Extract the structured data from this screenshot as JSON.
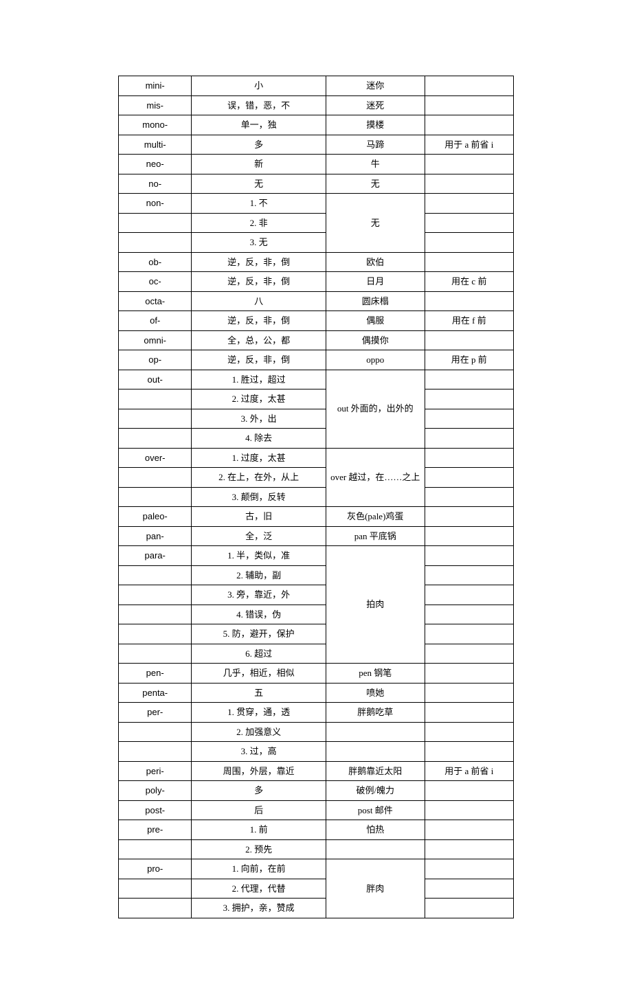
{
  "rows": [
    {
      "c1": "mini-",
      "c2": "小",
      "c3": "迷你",
      "c4": ""
    },
    {
      "c1": "mis-",
      "c2": "误，错，恶，不",
      "c3": "迷死",
      "c4": ""
    },
    {
      "c1": "mono-",
      "c2": "单一，独",
      "c3": "摸楼",
      "c4": ""
    },
    {
      "c1": "multi-",
      "c2": "多",
      "c3": "马蹄",
      "c4": "用于 a 前省 i"
    },
    {
      "c1": "neo-",
      "c2": "新",
      "c3": "牛",
      "c4": ""
    },
    {
      "c1": "no-",
      "c2": "无",
      "c3": "无",
      "c4": ""
    },
    {
      "c1": "non-",
      "c2": "1. 不",
      "c3_span": 3,
      "c3": "无",
      "c4": ""
    },
    {
      "c1": "",
      "c2": "2. 非",
      "c4": ""
    },
    {
      "c1": "",
      "c2": "3. 无",
      "c4": ""
    },
    {
      "c1": "ob-",
      "c2": "逆，反，非，倒",
      "c3": "欧伯",
      "c4": ""
    },
    {
      "c1": "oc-",
      "c2": "逆，反，非，倒",
      "c3": "日月",
      "c4": "用在 c 前"
    },
    {
      "c1": "octa-",
      "c2": "八",
      "c3": "圆床榻",
      "c4": ""
    },
    {
      "c1": "of-",
      "c2": "逆，反，非，倒",
      "c3": "偶服",
      "c4": "用在 f 前"
    },
    {
      "c1": "omni-",
      "c2": "全，总，公，都",
      "c3": "偶摸你",
      "c4": ""
    },
    {
      "c1": "op-",
      "c2": "逆，反，非，倒",
      "c3": "oppo",
      "c4": "用在 p 前"
    },
    {
      "c1": "out-",
      "c2": "1. 胜过，超过",
      "c3_span": 4,
      "c3": "out 外面的，出外的",
      "c4": ""
    },
    {
      "c1": "",
      "c2": "2. 过度，太甚",
      "c4": ""
    },
    {
      "c1": "",
      "c2": "3. 外，出",
      "c4": ""
    },
    {
      "c1": "",
      "c2": "4. 除去",
      "c4": ""
    },
    {
      "c1": "over-",
      "c2": "1. 过度，太甚",
      "c3_span": 3,
      "c3": "over 越过，在……之上",
      "c4": ""
    },
    {
      "c1": "",
      "c2": "2. 在上，在外，从上",
      "c4": ""
    },
    {
      "c1": "",
      "c2": "3. 颠倒，反转",
      "c4": ""
    },
    {
      "c1": "paleo-",
      "c2": "古，旧",
      "c3": "灰色(pale)鸡蛋",
      "c4": ""
    },
    {
      "c1": "pan-",
      "c2": "全，泛",
      "c3": "pan 平底锅",
      "c4": ""
    },
    {
      "c1": "para-",
      "c2": "1. 半，类似，准",
      "c3_span": 6,
      "c3": "拍肉",
      "c4": ""
    },
    {
      "c1": "",
      "c2": "2. 辅助，副",
      "c4": ""
    },
    {
      "c1": "",
      "c2": "3. 旁，靠近，外",
      "c4": ""
    },
    {
      "c1": "",
      "c2": "4. 错误，伪",
      "c4": ""
    },
    {
      "c1": "",
      "c2": "5. 防，避开，保护",
      "c4": ""
    },
    {
      "c1": "",
      "c2": "6. 超过",
      "c4": ""
    },
    {
      "c1": "pen-",
      "c2": "几乎，相近，相似",
      "c3": "pen 钢笔",
      "c4": ""
    },
    {
      "c1": "penta-",
      "c2": "五",
      "c3": "喷她",
      "c4": ""
    },
    {
      "c1": "per-",
      "c2": "1. 贯穿，通，透",
      "c3": "胖鹅吃草",
      "c4": ""
    },
    {
      "c1": "",
      "c2": "2. 加强意义",
      "c3": "",
      "c4": ""
    },
    {
      "c1": "",
      "c2": "3. 过，高",
      "c3": "",
      "c4": ""
    },
    {
      "c1": "peri-",
      "c2": "周围，外层，靠近",
      "c3": "胖鹅靠近太阳",
      "c4": "用于 a 前省 i"
    },
    {
      "c1": "poly-",
      "c2": "多",
      "c3": "破例/魄力",
      "c4": ""
    },
    {
      "c1": "post-",
      "c2": "后",
      "c3": "post 邮件",
      "c4": ""
    },
    {
      "c1": "pre-",
      "c2": "1. 前",
      "c3": "怕热",
      "c4": ""
    },
    {
      "c1": "",
      "c2": "2. 预先",
      "c3": "",
      "c4": ""
    },
    {
      "c1": "pro-",
      "c2": "1. 向前，在前",
      "c3_span": 3,
      "c3": "胖肉",
      "c4": ""
    },
    {
      "c1": "",
      "c2": "2. 代理，代替",
      "c4": ""
    },
    {
      "c1": "",
      "c2": "3. 拥护，亲，赞成",
      "c4": ""
    }
  ]
}
